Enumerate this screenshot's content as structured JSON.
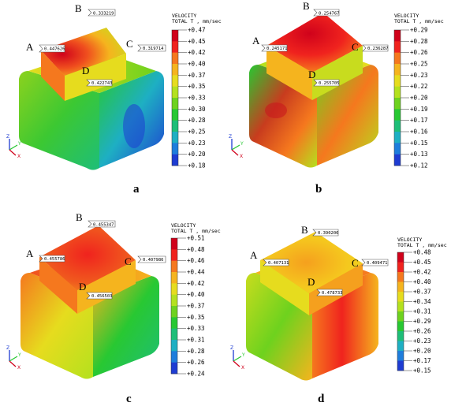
{
  "legend": {
    "title_line1": "VELOCITY",
    "title_line2": "TOTAL T , mm/sec"
  },
  "colors": {
    "scale": [
      "#d0021b",
      "#f0231e",
      "#f5781e",
      "#f5b41e",
      "#e6dc1e",
      "#b4e11e",
      "#6ed21e",
      "#28c832",
      "#1ebe78",
      "#1eafc3",
      "#1e7ddc",
      "#1e3cd2",
      "#0a0a96"
    ]
  },
  "panels": [
    {
      "caption": "a",
      "points": {
        "A": "A",
        "B": "B",
        "C": "C",
        "D": "D"
      },
      "callouts": {
        "A": "0.447626",
        "B": "0.333219",
        "C": "0.319714",
        "D": "0.422743"
      },
      "ticks": [
        "+0.47",
        "+0.45",
        "+0.42",
        "+0.40",
        "+0.37",
        "+0.35",
        "+0.33",
        "+0.30",
        "+0.28",
        "+0.25",
        "+0.23",
        "+0.20",
        "+0.18"
      ]
    },
    {
      "caption": "b",
      "points": {
        "A": "A",
        "B": "B",
        "C": "C",
        "D": "D"
      },
      "callouts": {
        "A": "0.245171",
        "B": "0.254767",
        "C": "0.236287",
        "D": "0.255705"
      },
      "ticks": [
        "+0.29",
        "+0.28",
        "+0.26",
        "+0.25",
        "+0.23",
        "+0.22",
        "+0.20",
        "+0.19",
        "+0.17",
        "+0.16",
        "+0.15",
        "+0.13",
        "+0.12"
      ]
    },
    {
      "caption": "c",
      "points": {
        "A": "A",
        "B": "B",
        "C": "C",
        "D": "D"
      },
      "callouts": {
        "A": "0.455786",
        "B": "0.455347",
        "C": "0.407986",
        "D": "0.456503"
      },
      "ticks": [
        "+0.51",
        "+0.48",
        "+0.46",
        "+0.44",
        "+0.42",
        "+0.40",
        "+0.37",
        "+0.35",
        "+0.33",
        "+0.31",
        "+0.28",
        "+0.26",
        "+0.24"
      ]
    },
    {
      "caption": "d",
      "points": {
        "A": "A",
        "B": "B",
        "C": "C",
        "D": "D"
      },
      "callouts": {
        "A": "0.407131",
        "B": "0.390206",
        "C": "0.409471",
        "D": "0.478733"
      },
      "ticks": [
        "+0.48",
        "+0.45",
        "+0.42",
        "+0.40",
        "+0.37",
        "+0.34",
        "+0.31",
        "+0.29",
        "+0.26",
        "+0.23",
        "+0.20",
        "+0.17",
        "+0.15"
      ]
    }
  ]
}
